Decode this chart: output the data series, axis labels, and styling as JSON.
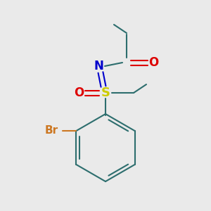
{
  "background_color": "#eaeaea",
  "ring_color": "#2d6e6e",
  "sulfur_color": "#cccc00",
  "nitrogen_color": "#0000cc",
  "oxygen_color": "#dd0000",
  "bromine_color": "#cc7722",
  "bond_color": "#2d6e6e",
  "sulfur_label": "S",
  "nitrogen_label": "N",
  "oxygen_label_1": "O",
  "oxygen_label_2": "O",
  "bromine_label": "Br",
  "line_width": 1.5,
  "figsize": [
    3.0,
    3.0
  ],
  "dpi": 100
}
